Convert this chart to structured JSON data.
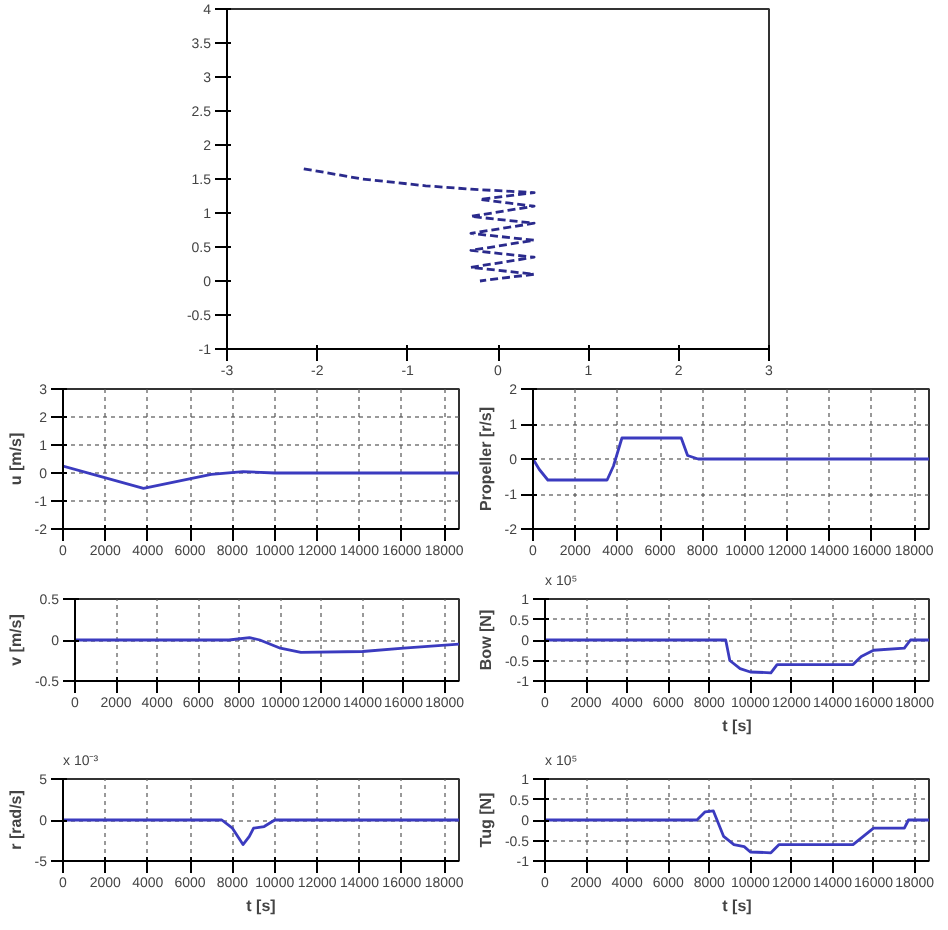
{
  "chart_data": [
    {
      "type": "line",
      "x": [
        -2.15,
        -1.5,
        -0.8,
        -0.3,
        0.4,
        -0.2,
        0.4,
        -0.3,
        0.4,
        -0.3,
        0.4,
        -0.3,
        0.4,
        -0.3,
        0.4,
        -0.2
      ],
      "values": [
        1.65,
        1.5,
        1.4,
        1.35,
        1.3,
        1.2,
        1.1,
        0.95,
        0.85,
        0.7,
        0.6,
        0.45,
        0.35,
        0.2,
        0.1,
        0.0
      ],
      "color": "#2a2a8c",
      "line_style": "dashed",
      "xlim": [
        -3,
        3
      ],
      "ylim": [
        -1,
        4
      ],
      "xticks": [
        -3,
        -2,
        -1,
        0,
        1,
        2,
        3
      ],
      "yticks": [
        -1,
        -0.5,
        0,
        0.5,
        1,
        1.5,
        2,
        2.5,
        3,
        3.5,
        4
      ],
      "grid": false
    },
    {
      "type": "line",
      "ylabel": "u [m/s]",
      "x": [
        0,
        3800,
        7000,
        8500,
        10000,
        18700
      ],
      "values": [
        0.25,
        -0.55,
        -0.05,
        0.05,
        0.0,
        0.0
      ],
      "color": "#3b3bbf",
      "xlim": [
        0,
        18700
      ],
      "ylim": [
        -2,
        3
      ],
      "xticks": [
        0,
        2000,
        4000,
        6000,
        8000,
        10000,
        12000,
        14000,
        16000,
        18000
      ],
      "yticks": [
        -2,
        -1,
        0,
        1,
        2,
        3
      ],
      "grid": true
    },
    {
      "type": "line",
      "ylabel": "Propeller [r/s]",
      "x": [
        0,
        300,
        700,
        3500,
        3800,
        4200,
        7000,
        7300,
        7800,
        18700
      ],
      "values": [
        0,
        -0.3,
        -0.6,
        -0.6,
        -0.2,
        0.6,
        0.6,
        0.1,
        0,
        0
      ],
      "color": "#3b3bbf",
      "xlim": [
        0,
        18700
      ],
      "ylim": [
        -2,
        2
      ],
      "xticks": [
        0,
        2000,
        4000,
        6000,
        8000,
        10000,
        12000,
        14000,
        16000,
        18000
      ],
      "yticks": [
        -2,
        -1,
        0,
        1,
        2
      ],
      "grid": true
    },
    {
      "type": "line",
      "ylabel": "v [m/s]",
      "x": [
        0,
        7500,
        8500,
        9000,
        10000,
        11000,
        14000,
        16000,
        18700
      ],
      "values": [
        0,
        0,
        0.03,
        0,
        -0.1,
        -0.15,
        -0.14,
        -0.1,
        -0.05
      ],
      "color": "#3b3bbf",
      "xlim": [
        0,
        18700
      ],
      "ylim": [
        -0.5,
        0.5
      ],
      "xticks": [
        0,
        2000,
        4000,
        6000,
        8000,
        10000,
        12000,
        14000,
        16000,
        18000
      ],
      "yticks": [
        -0.5,
        0,
        0.5
      ],
      "grid": true
    },
    {
      "type": "line",
      "ylabel": "Bow [N]",
      "xlabel": "t [s]",
      "annotations": [
        "x 10⁵"
      ],
      "x": [
        0,
        8800,
        9000,
        9500,
        10000,
        11000,
        11300,
        15000,
        15400,
        16000,
        17500,
        17800,
        18700
      ],
      "values": [
        0,
        0,
        -0.5,
        -0.7,
        -0.78,
        -0.8,
        -0.6,
        -0.6,
        -0.4,
        -0.25,
        -0.2,
        0,
        0
      ],
      "color": "#3b3bbf",
      "xlim": [
        0,
        18700
      ],
      "ylim": [
        -1,
        1
      ],
      "xticks": [
        0,
        2000,
        4000,
        6000,
        8000,
        10000,
        12000,
        14000,
        16000,
        18000
      ],
      "yticks": [
        -1,
        -0.5,
        0,
        0.5,
        1
      ],
      "grid": true
    },
    {
      "type": "line",
      "ylabel": "r [rad/s]",
      "xlabel": "t [s]",
      "annotations": [
        "x 10⁻³"
      ],
      "x": [
        0,
        7500,
        8000,
        8500,
        8800,
        9000,
        9500,
        10000,
        18700
      ],
      "values": [
        0,
        0,
        -1,
        -3,
        -2,
        -1,
        -0.8,
        0,
        0
      ],
      "color": "#3b3bbf",
      "xlim": [
        0,
        18700
      ],
      "ylim": [
        -5,
        5
      ],
      "xticks": [
        0,
        2000,
        4000,
        6000,
        8000,
        10000,
        12000,
        14000,
        16000,
        18000
      ],
      "yticks": [
        -5,
        0,
        5
      ],
      "grid": true
    },
    {
      "type": "line",
      "ylabel": "Tug [N]",
      "xlabel": "t [s]",
      "annotations": [
        "x 10⁵"
      ],
      "x": [
        0,
        7400,
        7800,
        8200,
        8700,
        9200,
        9700,
        10000,
        11000,
        11400,
        15000,
        15500,
        16000,
        17500,
        17700,
        18700
      ],
      "values": [
        0,
        0,
        0.2,
        0.22,
        -0.4,
        -0.6,
        -0.65,
        -0.78,
        -0.8,
        -0.6,
        -0.6,
        -0.4,
        -0.2,
        -0.2,
        0,
        0
      ],
      "color": "#3b3bbf",
      "xlim": [
        0,
        18700
      ],
      "ylim": [
        -1,
        1
      ],
      "xticks": [
        0,
        2000,
        4000,
        6000,
        8000,
        10000,
        12000,
        14000,
        16000,
        18000
      ],
      "yticks": [
        -1,
        -0.5,
        0,
        0.5,
        1
      ],
      "grid": true
    }
  ]
}
